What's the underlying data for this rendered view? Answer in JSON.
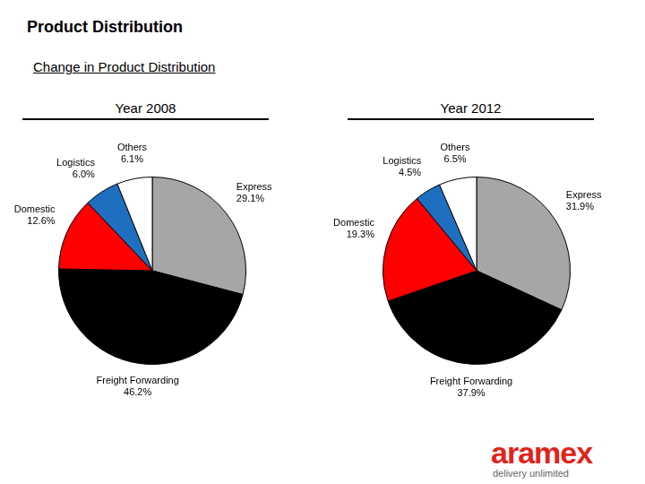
{
  "header": {
    "title": "Product Distribution",
    "subtitle": "Change in Product Distribution"
  },
  "logo": {
    "name": "aramex",
    "tagline": "delivery unlimited"
  },
  "chart_data": [
    {
      "type": "pie",
      "title": "Year 2008",
      "categories": [
        "Express",
        "Freight Forwarding",
        "Domestic",
        "Logistics",
        "Others"
      ],
      "values": [
        29.1,
        46.2,
        12.6,
        6.0,
        6.1
      ],
      "value_labels": [
        "29.1%",
        "46.2%",
        "12.6%",
        "6.0%",
        "6.1%"
      ],
      "colors": [
        "#a6a6a6",
        "#000000",
        "#ff0000",
        "#1f6fc0",
        "#ffffff"
      ],
      "data_labels": true
    },
    {
      "type": "pie",
      "title": "Year 2012",
      "categories": [
        "Express",
        "Freight Forwarding",
        "Domestic",
        "Logistics",
        "Others"
      ],
      "values": [
        31.9,
        37.9,
        19.3,
        4.5,
        6.5
      ],
      "value_labels": [
        "31.9%",
        "37.9%",
        "19.3%",
        "4.5%",
        "6.5%"
      ],
      "colors": [
        "#a6a6a6",
        "#000000",
        "#ff0000",
        "#1f6fc0",
        "#ffffff"
      ],
      "data_labels": true
    }
  ]
}
